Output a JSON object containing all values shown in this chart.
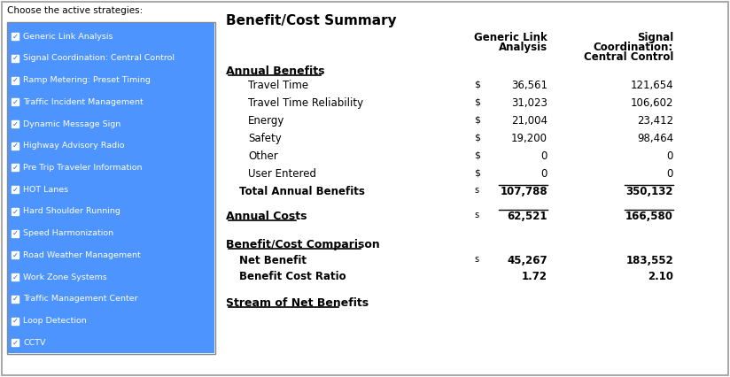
{
  "title": "Benefit/Cost Summary",
  "left_panel_title": "Choose the active strategies:",
  "strategies": [
    "Generic Link Analysis",
    "Signal Coordination: Central Control",
    "Ramp Metering: Preset Timing",
    "Traffic Incident Management",
    "Dynamic Message Sign",
    "Highway Advisory Radio",
    "Pre Trip Traveler Information",
    "HOT Lanes",
    "Hard Shoulder Running",
    "Speed Harmonization",
    "Road Weather Management",
    "Work Zone Systems",
    "Traffic Management Center",
    "Loop Detection",
    "CCTV"
  ],
  "col_headers": [
    "Generic Link\nAnalysis",
    "Signal\nCoordination:\nCentral Control"
  ],
  "section_annual_benefits": "Annual Benefits",
  "benefit_rows": [
    {
      "label": "Travel Time",
      "dollar": true,
      "vals": [
        "36,561",
        "121,654"
      ]
    },
    {
      "label": "Travel Time Reliability",
      "dollar": true,
      "vals": [
        "31,023",
        "106,602"
      ]
    },
    {
      "label": "Energy",
      "dollar": true,
      "vals": [
        "21,004",
        "23,412"
      ]
    },
    {
      "label": "Safety",
      "dollar": true,
      "vals": [
        "19,200",
        "98,464"
      ]
    },
    {
      "label": "Other",
      "dollar": true,
      "vals": [
        "0",
        "0"
      ]
    },
    {
      "label": "User Entered",
      "dollar": true,
      "vals": [
        "0",
        "0"
      ]
    }
  ],
  "total_row": {
    "label": "Total Annual Benefits",
    "dollar_lower": true,
    "vals": [
      "107,788",
      "350,132"
    ]
  },
  "section_annual_costs": "Annual Costs",
  "costs_row": {
    "dollar": true,
    "vals": [
      "62,521",
      "166,580"
    ]
  },
  "section_bc_comparison": "Benefit/Cost Comparison",
  "net_benefit_row": {
    "label": "Net Benefit",
    "dollar": true,
    "vals": [
      "45,267",
      "183,552"
    ]
  },
  "bcr_row": {
    "label": "Benefit Cost Ratio",
    "dollar": false,
    "vals": [
      "1.72",
      "2.10"
    ]
  },
  "section_stream": "Stream of Net Benefits",
  "bg_color": "#ffffff",
  "list_bg_color": "#4d94ff",
  "list_text_color": "#ffffff",
  "header_text_color": "#000000",
  "border_color": "#aaaaaa",
  "value_text_color": "#000000",
  "dollar_sign_color": "#000000",
  "underline_color": "#000000",
  "section_header_underline": true
}
